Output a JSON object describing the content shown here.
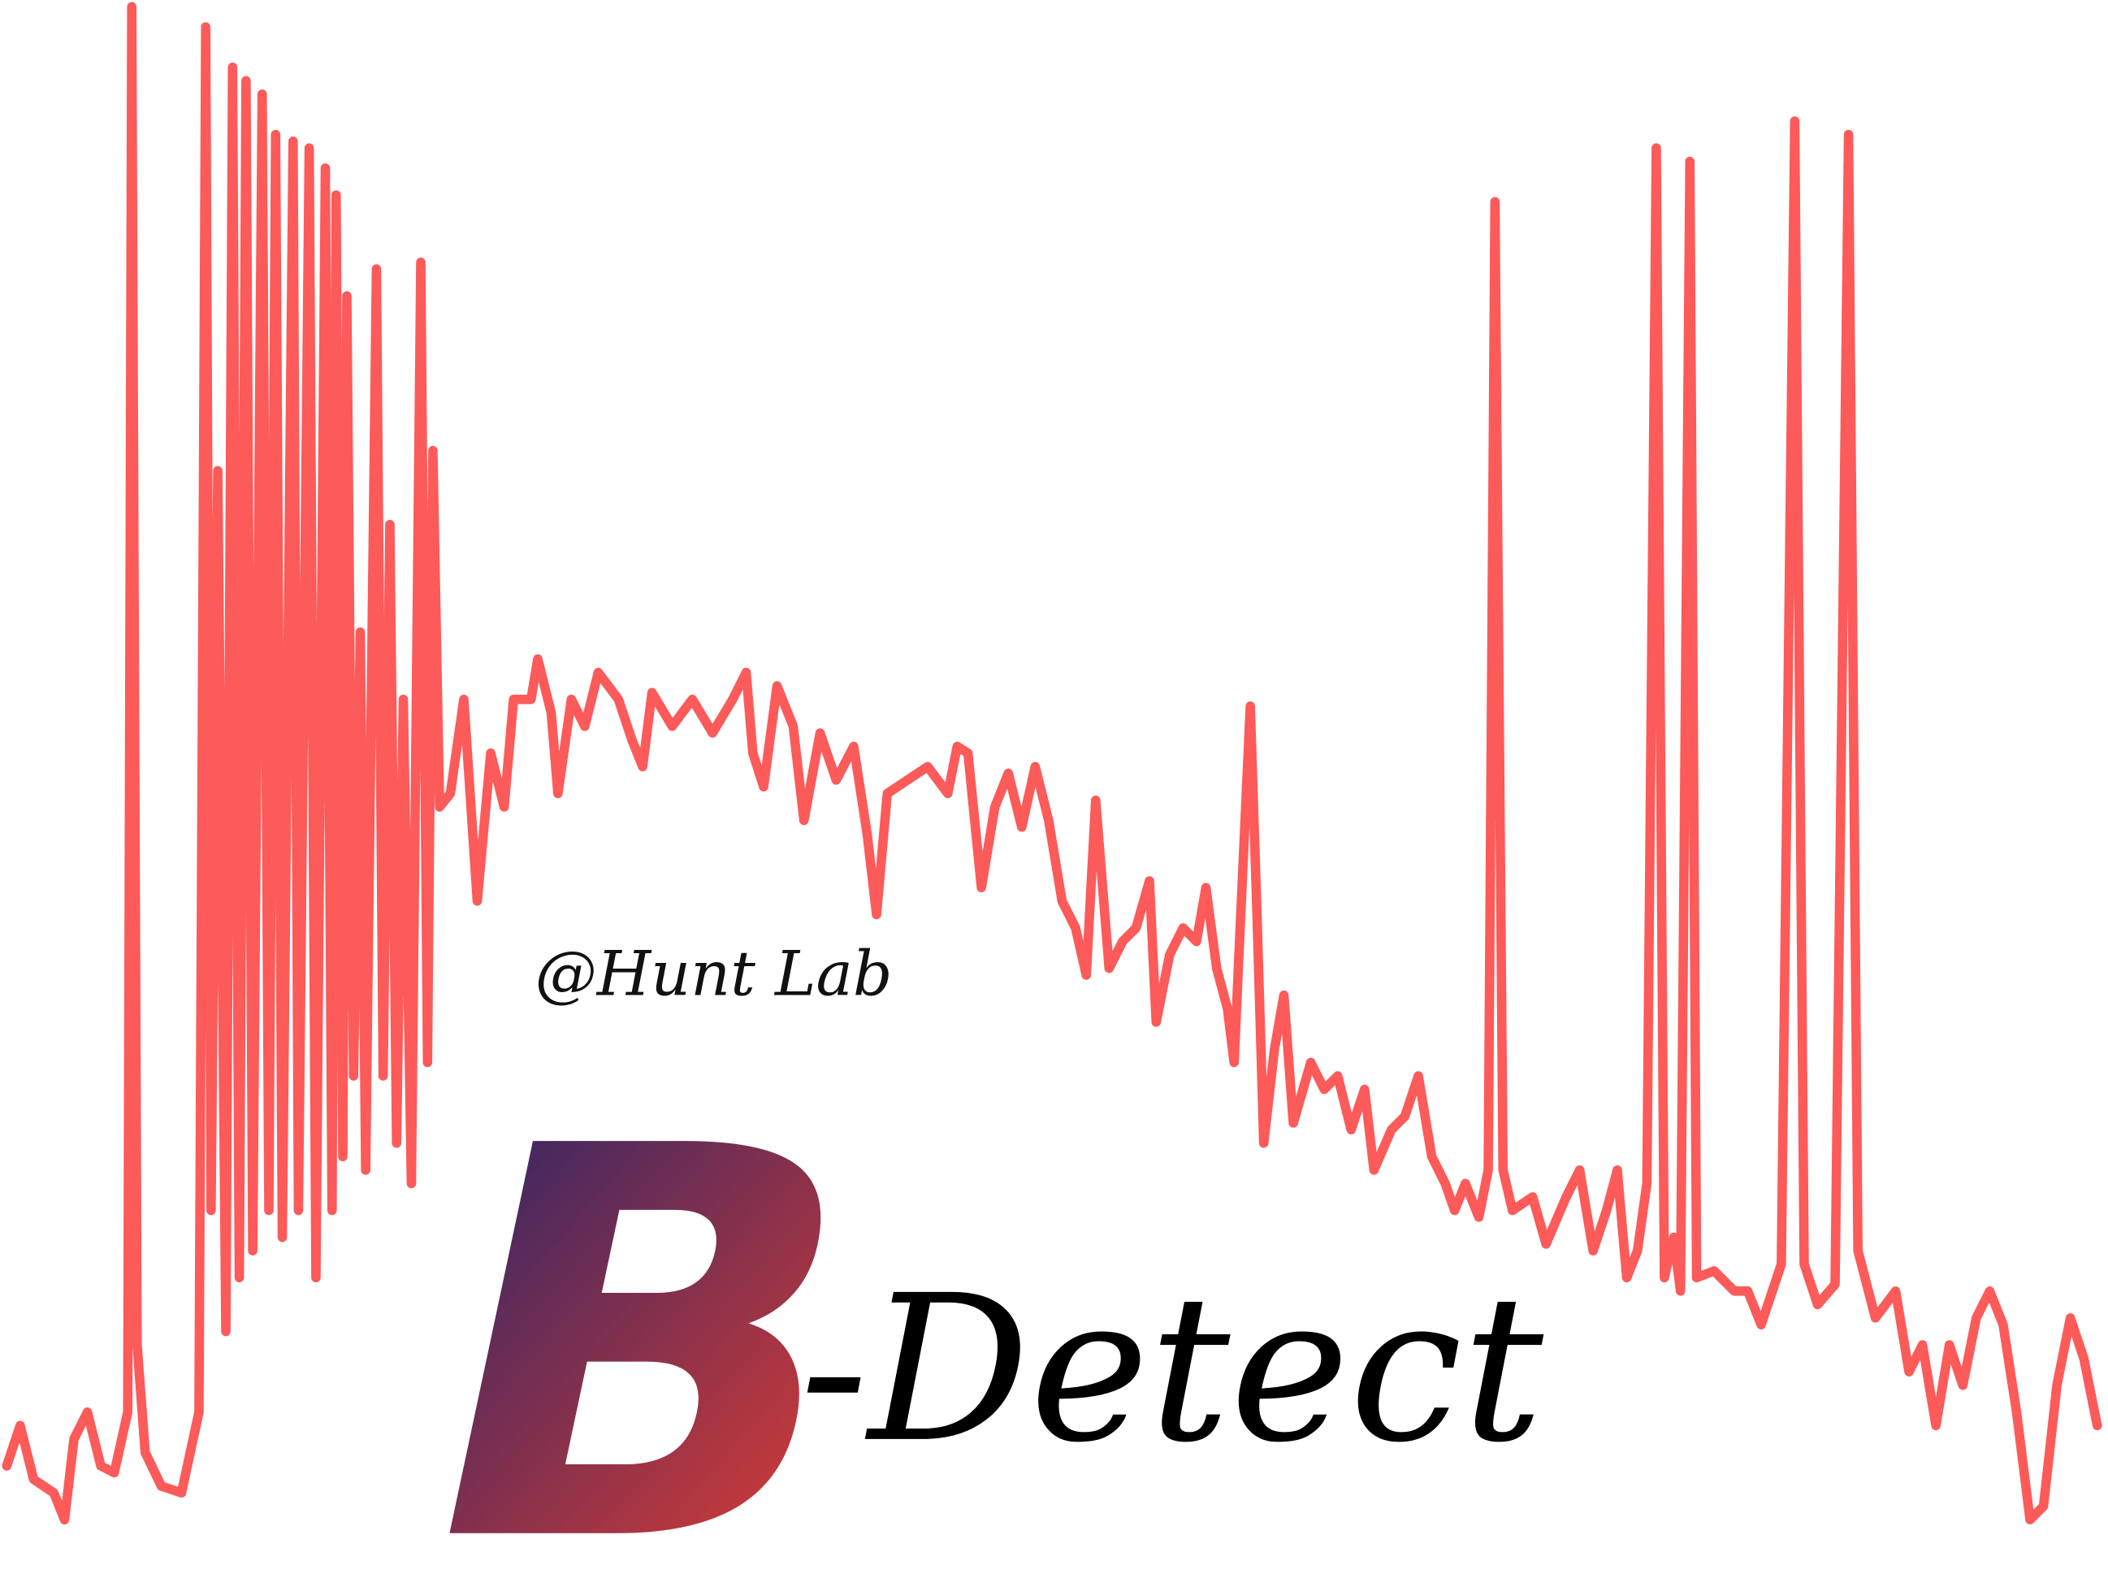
{
  "watermark": "@Hunt Lab",
  "logo": {
    "letter": "B",
    "text": "-Detect"
  }
}
